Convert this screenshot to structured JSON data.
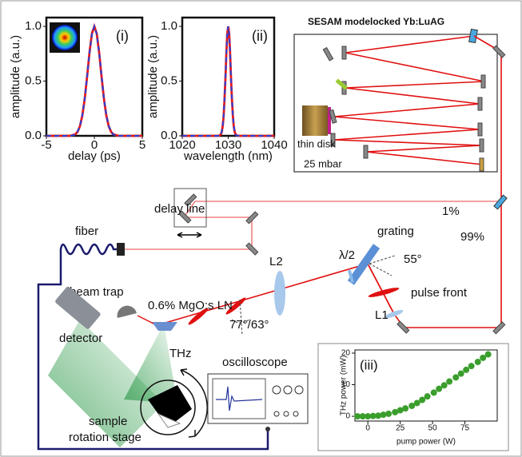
{
  "diagram": {
    "laser_title": "SESAM modelocked Yb:LuAG",
    "thin_disk": "thin disk",
    "pressure": "25 mbar",
    "delay_line": "delay line",
    "split_low": "1%",
    "split_high": "99%",
    "fiber": "fiber",
    "grating": "grating",
    "grating_angle": "55°",
    "waveplate": "λ/2",
    "lens_2": "L2",
    "pulse_front": "pulse front",
    "lens_1": "L1",
    "beam_trap": "beam trap",
    "crystal": "0.6% MgO:s LN",
    "crystal_angles": "77°/63°",
    "thz": "THz",
    "detector": "detector",
    "oscilloscope": "oscilloscope",
    "sample": "sample",
    "rotation_stage": "rotation stage"
  },
  "chart_data": [
    {
      "type": "line",
      "label": "(i)",
      "xlabel": "delay (ps)",
      "ylabel": "amplitude (a.u.)",
      "x": [
        -5,
        -4,
        -3,
        -2.5,
        -2,
        -1.75,
        -1.5,
        -1.25,
        -1,
        -0.75,
        -0.5,
        -0.25,
        0,
        0.25,
        0.5,
        0.75,
        1,
        1.25,
        1.5,
        1.75,
        2,
        2.5,
        3,
        4,
        5
      ],
      "series": [
        {
          "color": "#e8191b",
          "dashed": false,
          "values": [
            0,
            0,
            0,
            0.001,
            0.013,
            0.036,
            0.088,
            0.185,
            0.339,
            0.544,
            0.763,
            0.935,
            1,
            0.935,
            0.763,
            0.544,
            0.339,
            0.185,
            0.088,
            0.036,
            0.013,
            0.001,
            0,
            0,
            0
          ]
        },
        {
          "color": "#2b3fd6",
          "dashed": true,
          "values": [
            0,
            0,
            0,
            0,
            0.01,
            0.04,
            0.09,
            0.19,
            0.34,
            0.55,
            0.76,
            0.93,
            1,
            0.93,
            0.76,
            0.55,
            0.34,
            0.19,
            0.09,
            0.04,
            0.01,
            0,
            0,
            0,
            0
          ]
        }
      ],
      "xlim": [
        -5,
        5
      ],
      "xticks": [
        -5,
        0,
        5
      ],
      "ylim": [
        0,
        1.08
      ],
      "yticks": [
        {
          "value": 0,
          "label": "0.0"
        },
        {
          "value": 0.5,
          "label": "0.5"
        },
        {
          "value": 1,
          "label": "1.0"
        }
      ]
    },
    {
      "type": "line",
      "label": "(ii)",
      "xlabel": "wavelength (nm)",
      "ylabel": "amplitude (a.u.)",
      "x": [
        1020,
        1025,
        1027,
        1028,
        1028.4,
        1028.6,
        1028.8,
        1029,
        1029.2,
        1029.4,
        1029.6,
        1029.8,
        1030,
        1030.2,
        1030.4,
        1030.6,
        1030.8,
        1031,
        1031.2,
        1031.4,
        1031.6,
        1032,
        1033,
        1035,
        1040
      ],
      "series": [
        {
          "color": "#e8191b",
          "dashed": false,
          "values": [
            0,
            0,
            0,
            0.001,
            0.013,
            0.036,
            0.088,
            0.185,
            0.339,
            0.544,
            0.763,
            0.935,
            1,
            0.935,
            0.763,
            0.544,
            0.339,
            0.185,
            0.088,
            0.036,
            0.013,
            0.001,
            0,
            0,
            0
          ]
        },
        {
          "color": "#2b3fd6",
          "dashed": true,
          "values": [
            0,
            0,
            0,
            0,
            0.01,
            0.04,
            0.09,
            0.19,
            0.34,
            0.55,
            0.76,
            0.93,
            1,
            0.93,
            0.76,
            0.55,
            0.34,
            0.19,
            0.09,
            0.04,
            0.01,
            0,
            0,
            0,
            0
          ]
        }
      ],
      "xlim": [
        1020,
        1040
      ],
      "xticks": [
        1020,
        1030,
        1040
      ],
      "ylim": [
        0,
        1.08
      ],
      "yticks": [
        {
          "value": 0,
          "label": "0.0"
        },
        {
          "value": 0.5,
          "label": "0.5"
        },
        {
          "value": 1,
          "label": "1.0"
        }
      ]
    },
    {
      "type": "scatter",
      "label": "(iii)",
      "xlabel": "pump power (W)",
      "ylabel": "THz power (mW)",
      "color": "#3a9e2c",
      "x": [
        -8,
        -4,
        0,
        4,
        8,
        12,
        16,
        21,
        25,
        29,
        34,
        38,
        42,
        46,
        51,
        55,
        59,
        63,
        68,
        72,
        76,
        80,
        85,
        89,
        93
      ],
      "values": [
        0,
        0,
        0,
        0.1,
        0.2,
        0.5,
        0.8,
        1.3,
        1.9,
        2.5,
        3.3,
        4.2,
        5.2,
        6.3,
        7.5,
        8.7,
        9.8,
        11,
        12.3,
        13.5,
        14.7,
        15.9,
        17.2,
        18.5,
        19.6
      ],
      "xlim": [
        -10,
        100
      ],
      "xticks": [
        0,
        25,
        50,
        75
      ],
      "ylim": [
        -1.5,
        21
      ],
      "yticks": [
        0,
        10,
        20
      ]
    }
  ]
}
